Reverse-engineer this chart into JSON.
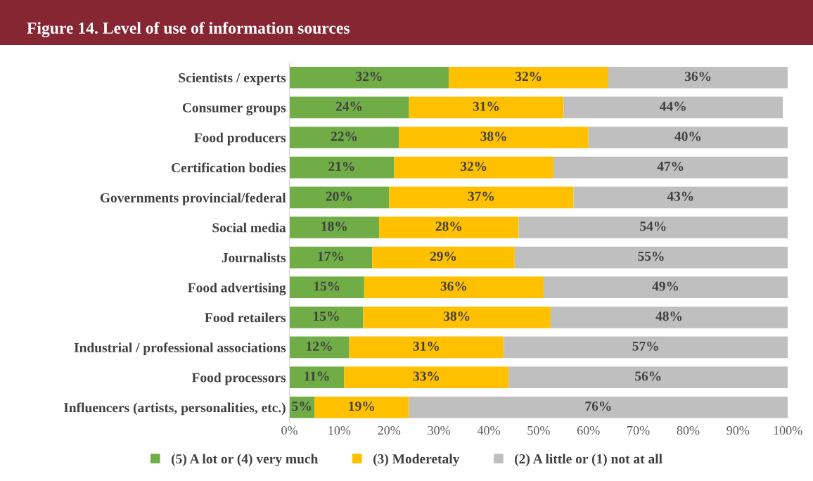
{
  "chart_data": {
    "type": "bar",
    "orientation": "horizontal",
    "stacked": true,
    "title": "Figure 14. Level of use of information sources",
    "categories": [
      "Scientists / experts",
      "Consumer groups",
      "Food producers",
      "Certification bodies",
      "Governments provincial/federal",
      "Social media",
      "Journalists",
      "Food advertising",
      "Food retailers",
      "Industrial / professional associations",
      "Food processors",
      "Influencers (artists, personalities, etc.)"
    ],
    "series": [
      {
        "name": "(5) A lot or (4) very much",
        "color": "#70ad47",
        "values": [
          32,
          24,
          22,
          21,
          20,
          18,
          16.6,
          15,
          14.8,
          12,
          11,
          5
        ],
        "value_labels": [
          "32%",
          "24%",
          "22%",
          "21%",
          "20%",
          "18%",
          "17%",
          "15%",
          "15%",
          "12%",
          "11%",
          "5%"
        ]
      },
      {
        "name": "(3) Moderetaly",
        "color": "#ffc000",
        "values": [
          32,
          31,
          38,
          32,
          37,
          28,
          28.6,
          36,
          37.6,
          31,
          33,
          19
        ],
        "value_labels": [
          "32%",
          "31%",
          "38%",
          "32%",
          "37%",
          "28%",
          "29%",
          "36%",
          "38%",
          "31%",
          "33%",
          "19%"
        ]
      },
      {
        "name": "(2) A little or (1) not at all",
        "color": "#bfbfbf",
        "values": [
          36,
          44,
          40,
          47,
          43,
          54,
          54.8,
          49,
          47.6,
          57,
          56,
          76
        ],
        "value_labels": [
          "36%",
          "44%",
          "40%",
          "47%",
          "43%",
          "54%",
          "55%",
          "49%",
          "48%",
          "57%",
          "56%",
          "76%"
        ]
      }
    ],
    "xlim": [
      0,
      100
    ],
    "xticks": [
      {
        "value": 0,
        "label": "0%"
      },
      {
        "value": 10,
        "label": "10%"
      },
      {
        "value": 20,
        "label": "20%"
      },
      {
        "value": 30,
        "label": "30%"
      },
      {
        "value": 40,
        "label": "40%"
      },
      {
        "value": 50,
        "label": "50%"
      },
      {
        "value": 60,
        "label": "60%"
      },
      {
        "value": 70,
        "label": "70%"
      },
      {
        "value": 80,
        "label": "80%"
      },
      {
        "value": 90,
        "label": "90%"
      },
      {
        "value": 100,
        "label": "100%"
      }
    ],
    "grid": false,
    "legend": "bottom"
  }
}
